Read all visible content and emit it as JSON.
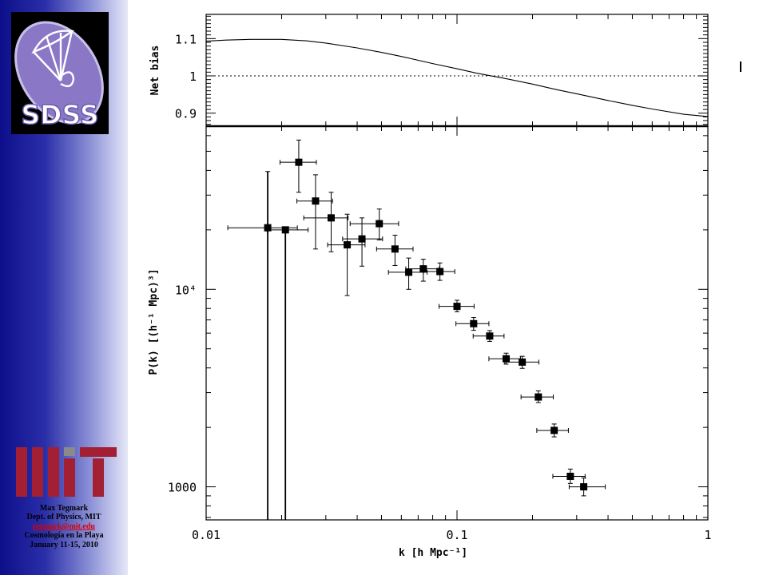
{
  "sidebar": {
    "credits": {
      "author": "Max Tegmark",
      "dept": "Dept. of Physics, MIT",
      "email": "tegmark@mit.edu",
      "event": "Cosmología en la Playa",
      "dates": "January 11-15, 2010"
    },
    "logos": {
      "top": "SDSS",
      "bottom": "MIT"
    }
  },
  "chart_data": [
    {
      "type": "line",
      "xscale": "log",
      "xlim": [
        0.01,
        1
      ],
      "ylim": [
        0.865,
        1.165
      ],
      "ylabel": "Net bias",
      "yticks": [
        {
          "value": 0.9,
          "label": "0.9"
        },
        {
          "value": 1.0,
          "label": "1"
        },
        {
          "value": 1.1,
          "label": "1.1"
        }
      ],
      "reference_line": {
        "y": 1.0,
        "style": "dotted"
      },
      "series": [
        {
          "x": [
            0.01,
            0.012,
            0.015,
            0.02,
            0.025,
            0.03,
            0.04,
            0.05,
            0.06,
            0.08,
            0.1,
            0.12,
            0.15,
            0.2,
            0.25,
            0.3,
            0.4,
            0.5,
            0.6,
            0.8,
            1.0
          ],
          "y": [
            1.093,
            1.096,
            1.098,
            1.098,
            1.094,
            1.088,
            1.075,
            1.063,
            1.052,
            1.033,
            1.019,
            1.007,
            0.995,
            0.978,
            0.963,
            0.952,
            0.934,
            0.921,
            0.911,
            0.897,
            0.891
          ]
        }
      ]
    },
    {
      "type": "scatter",
      "xscale": "log",
      "yscale": "log",
      "xlim": [
        0.01,
        1
      ],
      "ylim": [
        680,
        67000
      ],
      "xlabel": "k [h Mpc⁻¹]",
      "ylabel": "P(k) [(h⁻¹ Mpc)³]",
      "xticks": [
        {
          "value": 0.01,
          "label": "0.01"
        },
        {
          "value": 0.1,
          "label": "0.1"
        },
        {
          "value": 1,
          "label": "1"
        }
      ],
      "yticks": [
        {
          "value": 1000,
          "label": "1000"
        },
        {
          "value": 10000,
          "label": "10⁴"
        }
      ],
      "points": [
        {
          "k": 0.0176,
          "p": 20500,
          "klo": 0.0122,
          "khi": 0.0231,
          "plo": 1,
          "phi": 39500
        },
        {
          "k": 0.0207,
          "p": 20000,
          "klo": 0.0175,
          "khi": 0.0255,
          "plo": 1,
          "phi": 20500
        },
        {
          "k": 0.0234,
          "p": 44000,
          "klo": 0.0197,
          "khi": 0.0275,
          "plo": 31000,
          "phi": 57000
        },
        {
          "k": 0.0273,
          "p": 28000,
          "klo": 0.023,
          "khi": 0.0319,
          "plo": 16000,
          "phi": 38000
        },
        {
          "k": 0.0315,
          "p": 23000,
          "klo": 0.0245,
          "khi": 0.0368,
          "plo": 15500,
          "phi": 31000
        },
        {
          "k": 0.0365,
          "p": 16800,
          "klo": 0.0305,
          "khi": 0.043,
          "plo": 9300,
          "phi": 24000
        },
        {
          "k": 0.0418,
          "p": 18000,
          "klo": 0.035,
          "khi": 0.0505,
          "plo": 13100,
          "phi": 23000
        },
        {
          "k": 0.049,
          "p": 21500,
          "klo": 0.0375,
          "khi": 0.0585,
          "plo": 17800,
          "phi": 25500
        },
        {
          "k": 0.0566,
          "p": 16000,
          "klo": 0.0478,
          "khi": 0.0668,
          "plo": 13200,
          "phi": 18800
        },
        {
          "k": 0.0642,
          "p": 12200,
          "klo": 0.0533,
          "khi": 0.076,
          "plo": 10000,
          "phi": 14400
        },
        {
          "k": 0.0734,
          "p": 12700,
          "klo": 0.0625,
          "khi": 0.085,
          "plo": 11000,
          "phi": 14200
        },
        {
          "k": 0.0855,
          "p": 12300,
          "klo": 0.0735,
          "khi": 0.098,
          "plo": 11100,
          "phi": 13600
        },
        {
          "k": 0.1,
          "p": 8200,
          "klo": 0.0848,
          "khi": 0.117,
          "plo": 7700,
          "phi": 8800
        },
        {
          "k": 0.1165,
          "p": 6700,
          "klo": 0.099,
          "khi": 0.134,
          "plo": 6200,
          "phi": 7200
        },
        {
          "k": 0.135,
          "p": 5800,
          "klo": 0.116,
          "khi": 0.154,
          "plo": 5450,
          "phi": 6180
        },
        {
          "k": 0.157,
          "p": 4450,
          "klo": 0.134,
          "khi": 0.179,
          "plo": 4180,
          "phi": 4750
        },
        {
          "k": 0.182,
          "p": 4280,
          "klo": 0.155,
          "khi": 0.212,
          "plo": 3980,
          "phi": 4580
        },
        {
          "k": 0.211,
          "p": 2850,
          "klo": 0.18,
          "khi": 0.242,
          "plo": 2670,
          "phi": 3060
        },
        {
          "k": 0.244,
          "p": 1930,
          "klo": 0.208,
          "khi": 0.278,
          "plo": 1790,
          "phi": 2080
        },
        {
          "k": 0.283,
          "p": 1130,
          "klo": 0.241,
          "khi": 0.324,
          "plo": 1040,
          "phi": 1230
        },
        {
          "k": 0.32,
          "p": 1000,
          "klo": 0.28,
          "khi": 0.39,
          "plo": 900,
          "phi": 1110
        }
      ]
    }
  ]
}
